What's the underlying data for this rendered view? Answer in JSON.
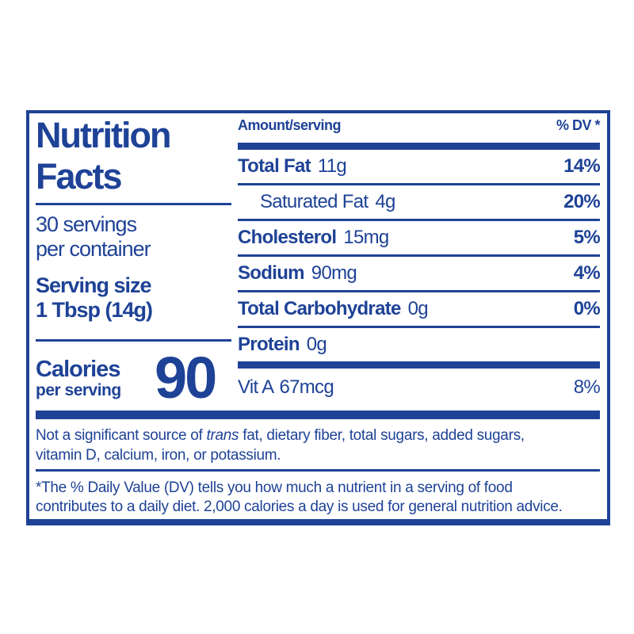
{
  "label": {
    "colors": {
      "blue": "#1e4296",
      "background": "#ffffff"
    },
    "title": {
      "line1": "Nutrition",
      "line2": "Facts"
    },
    "servings": {
      "line1": "30 servings",
      "line2": "per container"
    },
    "serving_size": {
      "label": "Serving size",
      "value": "1 Tbsp (14g)"
    },
    "calories": {
      "label": "Calories",
      "sublabel": "per serving",
      "value": "90"
    },
    "table": {
      "header_amount": "Amount/serving",
      "header_dv": "% DV *",
      "rows": [
        {
          "name": "Total Fat",
          "amount": "11g",
          "dv": "14%"
        },
        {
          "name": "Saturated Fat",
          "amount": "4g",
          "dv": "20%"
        },
        {
          "name": "Cholesterol",
          "amount": "15mg",
          "dv": "5%"
        },
        {
          "name": "Sodium",
          "amount": "90mg",
          "dv": "4%"
        },
        {
          "name": "Total Carbohydrate",
          "amount": "0g",
          "dv": "0%"
        },
        {
          "name": "Protein",
          "amount": "0g",
          "dv": ""
        }
      ],
      "vitamin_row": {
        "name": "Vit A",
        "amount": "67mcg",
        "dv": "8%"
      }
    },
    "not_significant": {
      "prefix": "Not a significant source of ",
      "italic": "trans",
      "line1_suffix": " fat, dietary fiber, total sugars, added sugars,",
      "line2": "vitamin D, calcium, iron, or potassium."
    },
    "footnote": {
      "line1": "*The % Daily Value (DV) tells you how much a nutrient in a serving of food",
      "line2": "contributes to a daily diet. 2,000 calories a day is used for general nutrition advice."
    }
  }
}
